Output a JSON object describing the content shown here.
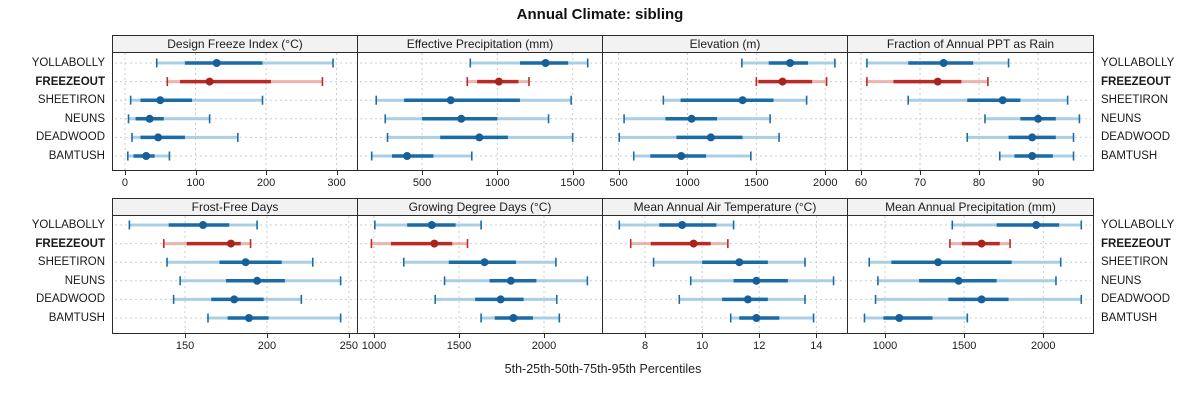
{
  "title": "Annual Climate: sibling",
  "xlabel": "5th-25th-50th-75th-95th Percentiles",
  "stations": [
    "YOLLABOLLY",
    "FREEZEOUT",
    "SHEETIRON",
    "NEUNS",
    "DEADWOOD",
    "BAMTUSH"
  ],
  "highlight_station": "FREEZEOUT",
  "colors": {
    "blue_dark": "#1a6ca8",
    "blue_light": "#a9cfe5",
    "blue_dot": "#15609a",
    "red_dark": "#b92b27",
    "red_light": "#efb3ad",
    "red_dot": "#a62320",
    "strip_bg": "#f2f2f2",
    "panel_border": "#2b2b2b",
    "grid": "#cccccc",
    "text": "#1c1c1c"
  },
  "chart_data": {
    "type": "interval-dotplot",
    "percentiles": [
      "5th",
      "25th",
      "50th",
      "75th",
      "95th"
    ],
    "grid": "dashed",
    "layout": "2 rows x 4 cols, station labels on both sides, FREEZEOUT highlighted red",
    "panels": [
      {
        "title": "Design Freeze Index (°C)",
        "row": 0,
        "col": 0,
        "xlim": [
          -17,
          329
        ],
        "ticks": [
          0,
          100,
          200,
          300
        ],
        "values": {
          "YOLLABOLLY": [
            45,
            85,
            130,
            195,
            295
          ],
          "FREEZEOUT": [
            60,
            78,
            120,
            207,
            280
          ],
          "SHEETIRON": [
            8,
            22,
            50,
            95,
            195
          ],
          "NEUNS": [
            5,
            15,
            35,
            55,
            120
          ],
          "DEADWOOD": [
            10,
            22,
            47,
            85,
            160
          ],
          "BAMTUSH": [
            4,
            12,
            30,
            42,
            63
          ]
        }
      },
      {
        "title": "Effective Precipitation (mm)",
        "row": 0,
        "col": 1,
        "xlim": [
          74,
          1695
        ],
        "ticks": [
          500,
          1000,
          1500
        ],
        "values": {
          "YOLLABOLLY": [
            820,
            1150,
            1320,
            1470,
            1600
          ],
          "FREEZEOUT": [
            800,
            865,
            1010,
            1140,
            1210
          ],
          "SHEETIRON": [
            195,
            380,
            690,
            1150,
            1490
          ],
          "NEUNS": [
            255,
            500,
            760,
            1000,
            1340
          ],
          "DEADWOOD": [
            270,
            620,
            880,
            1070,
            1500
          ],
          "BAMTUSH": [
            165,
            300,
            400,
            575,
            830
          ]
        }
      },
      {
        "title": "Elevation (m)",
        "row": 0,
        "col": 2,
        "xlim": [
          387,
          2158
        ],
        "ticks": [
          500,
          1000,
          1500,
          2000
        ],
        "values": {
          "YOLLABOLLY": [
            1395,
            1590,
            1745,
            1875,
            2070
          ],
          "FREEZEOUT": [
            1500,
            1515,
            1690,
            1905,
            2010
          ],
          "SHEETIRON": [
            825,
            950,
            1400,
            1625,
            1865
          ],
          "NEUNS": [
            540,
            840,
            1030,
            1215,
            1600
          ],
          "DEADWOOD": [
            505,
            920,
            1170,
            1400,
            1665
          ],
          "BAMTUSH": [
            610,
            730,
            955,
            1135,
            1460
          ]
        }
      },
      {
        "title": "Fraction of Annual PPT as Rain",
        "row": 0,
        "col": 3,
        "xlim": [
          57.8,
          99.3
        ],
        "ticks": [
          60,
          70,
          80,
          90
        ],
        "values": {
          "YOLLABOLLY": [
            61,
            68,
            74,
            79,
            85
          ],
          "FREEZEOUT": [
            61,
            65.5,
            73,
            77,
            81.5
          ],
          "SHEETIRON": [
            68,
            78,
            84,
            87,
            95
          ],
          "NEUNS": [
            81,
            87,
            90,
            93,
            97
          ],
          "DEADWOOD": [
            78,
            85,
            89,
            93,
            96
          ],
          "BAMTUSH": [
            83.5,
            86,
            89,
            92.5,
            96
          ]
        }
      },
      {
        "title": "Frost-Free Days",
        "row": 1,
        "col": 0,
        "xlim": [
          106,
          255
        ],
        "ticks": [
          150,
          200,
          250
        ],
        "values": {
          "YOLLABOLLY": [
            116,
            140,
            161,
            177,
            194
          ],
          "FREEZEOUT": [
            137,
            151,
            178,
            184,
            190
          ],
          "SHEETIRON": [
            139,
            171,
            187,
            209,
            228
          ],
          "NEUNS": [
            147,
            175,
            194,
            211,
            245
          ],
          "DEADWOOD": [
            143,
            166,
            180,
            198,
            221
          ],
          "BAMTUSH": [
            164,
            176,
            189,
            201,
            245
          ]
        }
      },
      {
        "title": "Growing Degree Days (°C)",
        "row": 1,
        "col": 1,
        "xlim": [
          906,
          2341
        ],
        "ticks": [
          1000,
          1500,
          2000
        ],
        "values": {
          "YOLLABOLLY": [
            1005,
            1195,
            1340,
            1480,
            1630
          ],
          "FREEZEOUT": [
            985,
            1100,
            1355,
            1460,
            1550
          ],
          "SHEETIRON": [
            1175,
            1440,
            1650,
            1835,
            2070
          ],
          "NEUNS": [
            1415,
            1680,
            1805,
            1955,
            2255
          ],
          "DEADWOOD": [
            1360,
            1595,
            1745,
            1880,
            2075
          ],
          "BAMTUSH": [
            1630,
            1710,
            1820,
            1935,
            2090
          ]
        }
      },
      {
        "title": "Mean Annual Air Temperature (°C)",
        "row": 1,
        "col": 2,
        "xlim": [
          6.53,
          15.07
        ],
        "ticks": [
          8,
          10,
          12,
          14
        ],
        "values": {
          "YOLLABOLLY": [
            7.1,
            8.5,
            9.3,
            10.5,
            11.1
          ],
          "FREEZEOUT": [
            7.5,
            8.2,
            9.7,
            10.3,
            10.9
          ],
          "SHEETIRON": [
            8.3,
            10.0,
            11.3,
            12.3,
            13.6
          ],
          "NEUNS": [
            9.6,
            11.1,
            11.9,
            13.0,
            14.6
          ],
          "DEADWOOD": [
            9.2,
            10.7,
            11.6,
            12.3,
            13.6
          ],
          "BAMTUSH": [
            11.0,
            11.3,
            11.9,
            12.7,
            13.9
          ]
        }
      },
      {
        "title": "Mean Annual Precipitation (mm)",
        "row": 1,
        "col": 3,
        "xlim": [
          766,
          2314
        ],
        "ticks": [
          1000,
          1500,
          2000
        ],
        "values": {
          "YOLLABOLLY": [
            1425,
            1705,
            1955,
            2100,
            2240
          ],
          "FREEZEOUT": [
            1410,
            1485,
            1610,
            1725,
            1790
          ],
          "SHEETIRON": [
            900,
            1040,
            1335,
            1800,
            2110
          ],
          "NEUNS": [
            955,
            1215,
            1465,
            1705,
            2080
          ],
          "DEADWOOD": [
            940,
            1400,
            1610,
            1780,
            2240
          ],
          "BAMTUSH": [
            870,
            990,
            1090,
            1300,
            1520
          ]
        }
      }
    ]
  }
}
